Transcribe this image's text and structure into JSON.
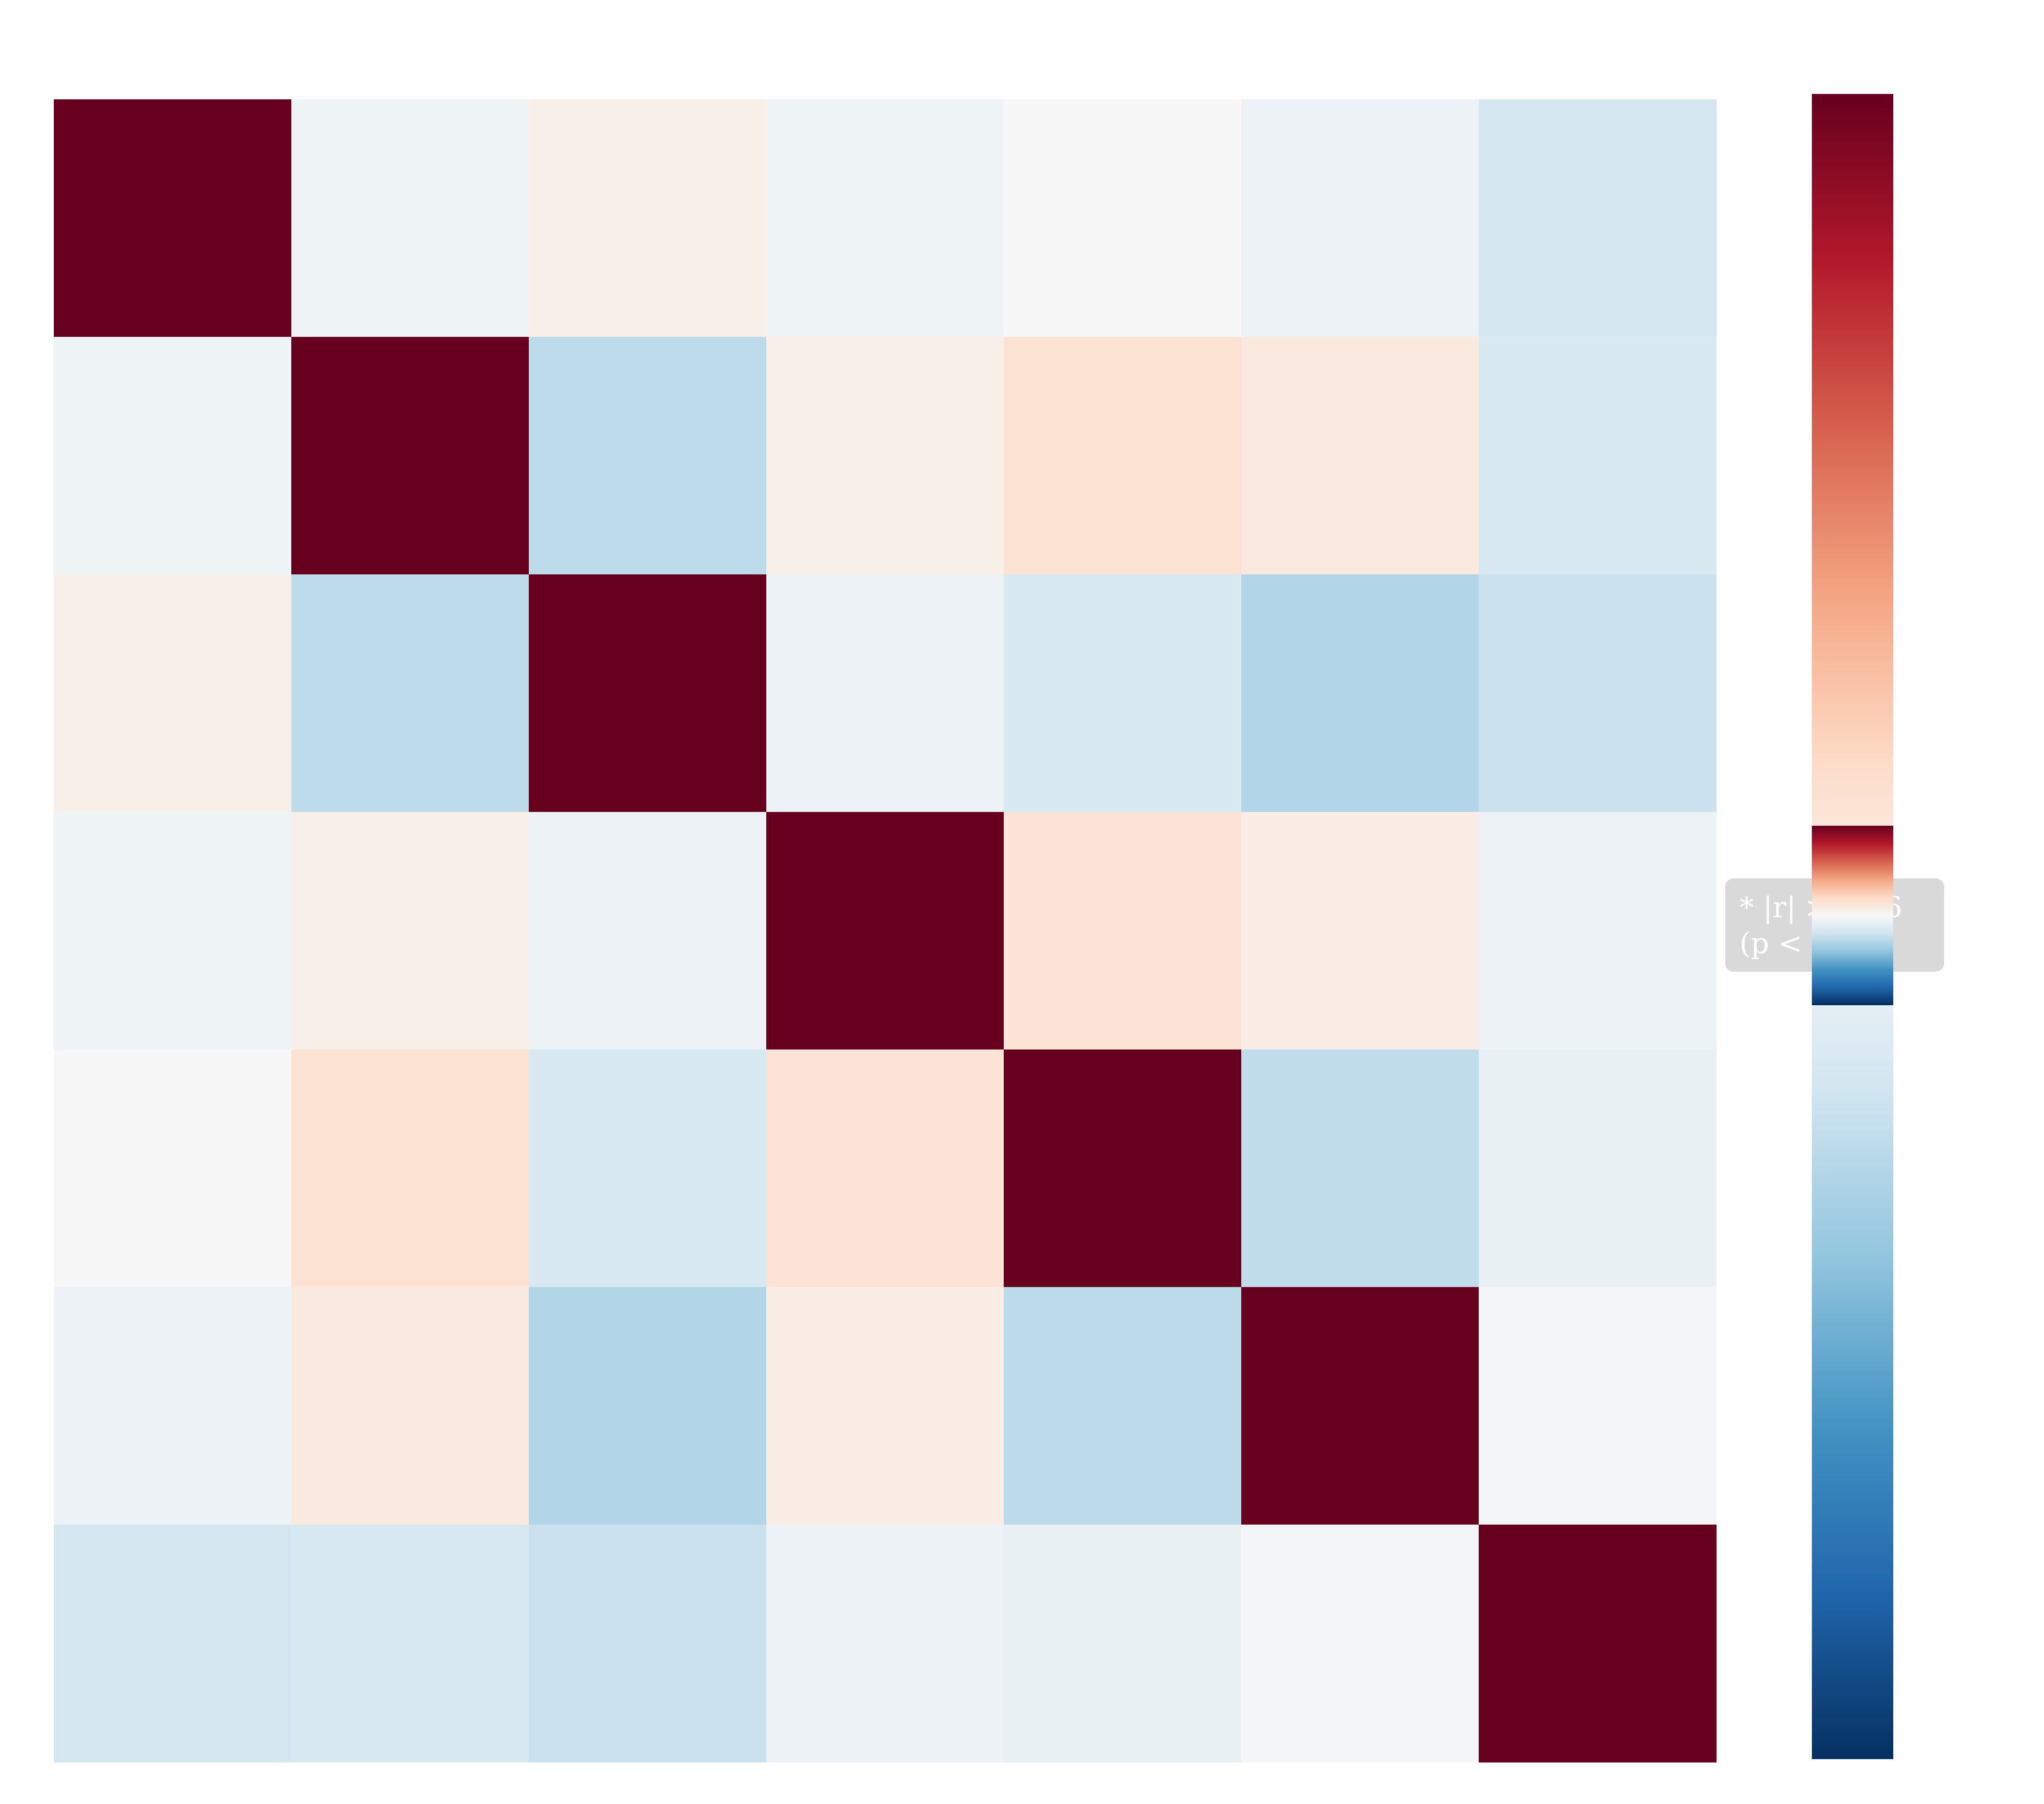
{
  "chart_data": {
    "type": "heatmap",
    "title": "",
    "xlabel": "",
    "ylabel": "",
    "row_labels": [],
    "col_labels": [],
    "matrix": [
      [
        1.0,
        -0.05,
        0.06,
        -0.05,
        0.0,
        -0.06,
        -0.18
      ],
      [
        -0.05,
        1.0,
        -0.26,
        0.06,
        0.15,
        0.1,
        -0.16
      ],
      [
        0.06,
        -0.26,
        1.0,
        -0.06,
        -0.16,
        -0.3,
        -0.22
      ],
      [
        -0.05,
        0.06,
        -0.06,
        1.0,
        0.14,
        0.07,
        -0.06
      ],
      [
        0.0,
        0.15,
        -0.16,
        0.14,
        1.0,
        -0.25,
        -0.08
      ],
      [
        -0.06,
        0.1,
        -0.3,
        0.07,
        -0.27,
        1.0,
        -0.02
      ],
      [
        -0.18,
        -0.16,
        -0.22,
        -0.06,
        -0.08,
        -0.02,
        1.0
      ]
    ],
    "colorscale": "RdBu_r",
    "colorbar": {
      "range": [
        -1,
        1
      ],
      "tick_labels": [],
      "stops": [
        "#053061",
        "#2166ac",
        "#4393c3",
        "#92c5de",
        "#d1e5f0",
        "#f7f7f7",
        "#fddbc7",
        "#f4a582",
        "#d6604d",
        "#b2182b",
        "#67001f"
      ]
    },
    "annotation": {
      "lines": [
        "* |r| > 0.86",
        "(p < 0.05)"
      ],
      "box_color": "#d9d9d9",
      "text_color": "#ffffff"
    }
  }
}
